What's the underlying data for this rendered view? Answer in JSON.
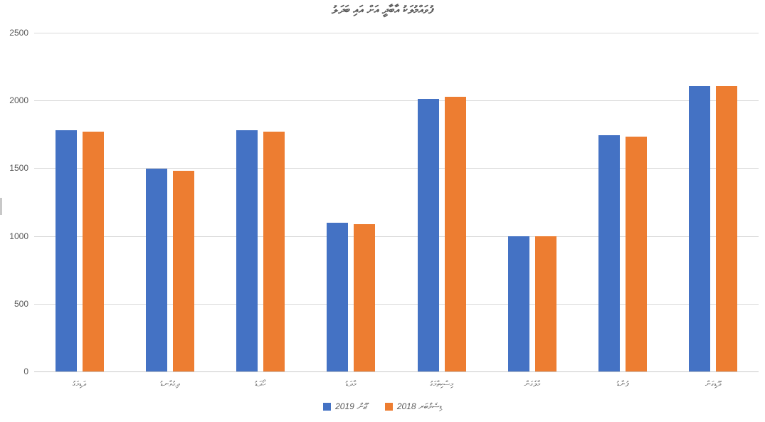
{
  "chart_data": {
    "type": "bar",
    "title": "ފުވައްމުލަކު އާބާދީ އަށް އައި ބަދަލު",
    "categories": [
      "ދަޑިމަގު",
      "ދިގުވާނޑު",
      "ހޯދަޑު",
      "މާދަޑު",
      "މިސްކިތްމަގު",
      "މާލެގަން",
      "ފުނާޑު",
      "ދޫޑިގަން"
    ],
    "series": [
      {
        "name": "ޖޫން 2019",
        "color": "#4472C4",
        "values": [
          1780,
          1495,
          1780,
          1100,
          2010,
          1000,
          1745,
          2105
        ]
      },
      {
        "name": "ޑިސެމްބަރ 2018",
        "color": "#ED7D31",
        "values": [
          1770,
          1480,
          1770,
          1085,
          2025,
          1000,
          1735,
          2105
        ]
      }
    ],
    "xlabel": "",
    "ylabel": "",
    "ylim": [
      0,
      2500
    ],
    "yticks": [
      0,
      500,
      1000,
      1500,
      2000,
      2500
    ],
    "grid": "horizontal",
    "legend_position": "bottom",
    "colors": {
      "grid": "#D9D9D9",
      "axis_text": "#595959",
      "title_text": "#595959"
    }
  }
}
